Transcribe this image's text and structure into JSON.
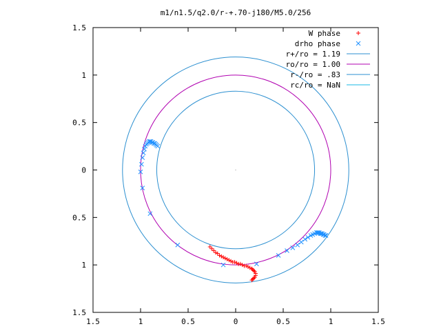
{
  "chart_data": {
    "type": "scatter",
    "title": "m1/n1.5/q2.0/r-+.70-j180/M5.0/256",
    "xlabel": "",
    "ylabel": "",
    "xlim": [
      -1.5,
      1.5
    ],
    "ylim": [
      -1.5,
      1.5
    ],
    "x_ticks": [
      -1.5,
      -1,
      -0.5,
      0,
      0.5,
      1,
      1.5
    ],
    "x_tick_labels": [
      "1.5",
      "1",
      "0.5",
      "0",
      "0.5",
      "1",
      "1.5"
    ],
    "y_ticks": [
      1.5,
      1,
      0.5,
      0,
      -0.5,
      -1,
      -1.5
    ],
    "y_tick_labels": [
      "1.5",
      "1",
      "0.5",
      "0",
      "0.5",
      "1",
      "1.5"
    ],
    "grid": false,
    "legend_position": "top-right",
    "series": [
      {
        "name": "W phase",
        "kind": "points",
        "marker": "+",
        "color": "#ff0000",
        "x": [
          -0.27,
          -0.25,
          -0.23,
          -0.21,
          -0.19,
          -0.17,
          -0.15,
          -0.13,
          -0.11,
          -0.09,
          -0.07,
          -0.05,
          -0.03,
          -0.01,
          0.01,
          0.03,
          0.05,
          0.07,
          0.09,
          0.11,
          0.13,
          0.15,
          0.17,
          0.18,
          0.19,
          0.2,
          0.21,
          0.21,
          0.2,
          0.19,
          0.18,
          0.17
        ],
        "y": [
          -0.81,
          -0.83,
          -0.85,
          -0.87,
          -0.88,
          -0.9,
          -0.91,
          -0.92,
          -0.93,
          -0.94,
          -0.95,
          -0.96,
          -0.97,
          -0.97,
          -0.98,
          -0.99,
          -0.99,
          -1.0,
          -1.01,
          -1.01,
          -1.02,
          -1.03,
          -1.04,
          -1.05,
          -1.06,
          -1.07,
          -1.09,
          -1.11,
          -1.13,
          -1.14,
          -1.15,
          -1.16
        ]
      },
      {
        "name": "drho phase",
        "kind": "points",
        "marker": "x",
        "color": "#1e90ff",
        "x": [
          -1.0,
          -0.99,
          -0.98,
          -0.97,
          -0.96,
          -0.95,
          -0.94,
          -0.93,
          -0.92,
          -0.91,
          -0.9,
          -0.89,
          -0.88,
          -0.87,
          -0.86,
          -0.85,
          -0.84,
          -0.83,
          -0.82,
          -0.98,
          -0.9,
          -0.61,
          -0.13,
          0.22,
          0.45,
          0.54,
          0.6,
          0.65,
          0.69,
          0.73,
          0.76,
          0.79,
          0.81,
          0.83,
          0.85,
          0.86,
          0.87,
          0.88,
          0.89,
          0.9,
          0.91,
          0.92,
          0.93,
          0.94,
          0.95
        ],
        "y": [
          -0.02,
          0.06,
          0.13,
          0.18,
          0.22,
          0.25,
          0.27,
          0.28,
          0.29,
          0.3,
          0.3,
          0.3,
          0.29,
          0.29,
          0.28,
          0.28,
          0.27,
          0.26,
          0.25,
          -0.19,
          -0.46,
          -0.79,
          -1.0,
          -0.99,
          -0.9,
          -0.85,
          -0.82,
          -0.79,
          -0.76,
          -0.73,
          -0.71,
          -0.69,
          -0.68,
          -0.67,
          -0.66,
          -0.66,
          -0.66,
          -0.66,
          -0.67,
          -0.67,
          -0.67,
          -0.68,
          -0.68,
          -0.69,
          -0.69
        ]
      },
      {
        "name": "r+/ro = 1.19",
        "kind": "circle",
        "radius": 1.19,
        "color": "#2b8fd0"
      },
      {
        "name": "ro/ro = 1.00",
        "kind": "circle",
        "radius": 1.0,
        "color": "#b000b0"
      },
      {
        "name": "r-/ro = .83",
        "kind": "circle",
        "radius": 0.83,
        "color": "#2b8fd0"
      },
      {
        "name": "rc/ro = NaN",
        "kind": "circle",
        "radius": null,
        "color": "#17b8e6"
      }
    ]
  }
}
